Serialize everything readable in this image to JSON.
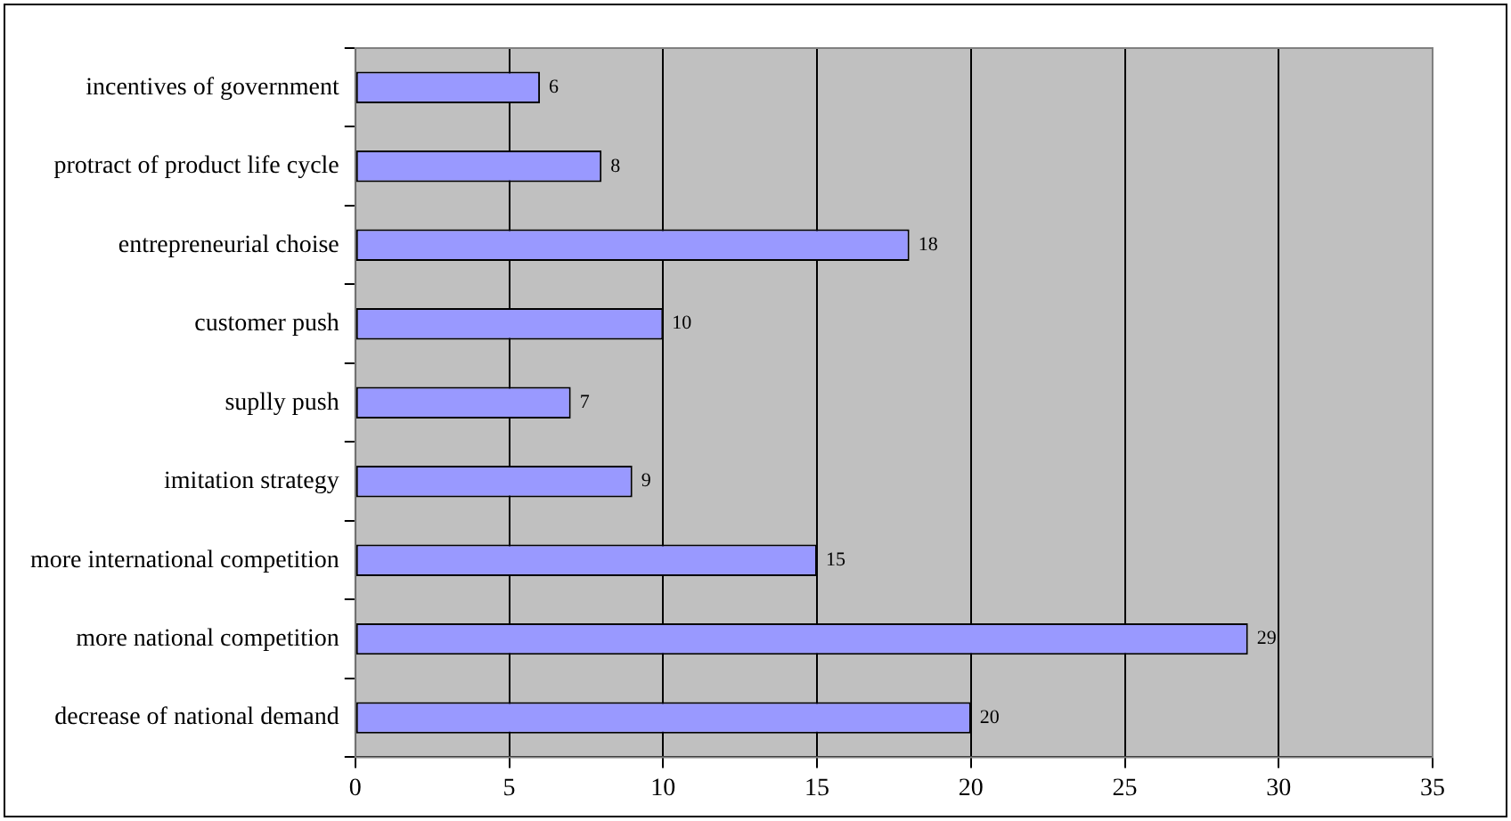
{
  "chart_data": {
    "type": "bar",
    "orientation": "horizontal",
    "categories": [
      "incentives of government",
      "protract of product life cycle",
      "entrepreneurial choise",
      "customer push",
      "suplly push",
      "imitation strategy",
      "more international competition",
      "more national competition",
      "decrease of national demand"
    ],
    "values": [
      6,
      8,
      18,
      10,
      7,
      9,
      15,
      29,
      20
    ],
    "color": "#9999ff",
    "xlim": [
      0,
      35
    ],
    "xticks": [
      0,
      5,
      10,
      15,
      20,
      25,
      30,
      35
    ],
    "grid": "x",
    "legend": false,
    "data_labels": true
  }
}
